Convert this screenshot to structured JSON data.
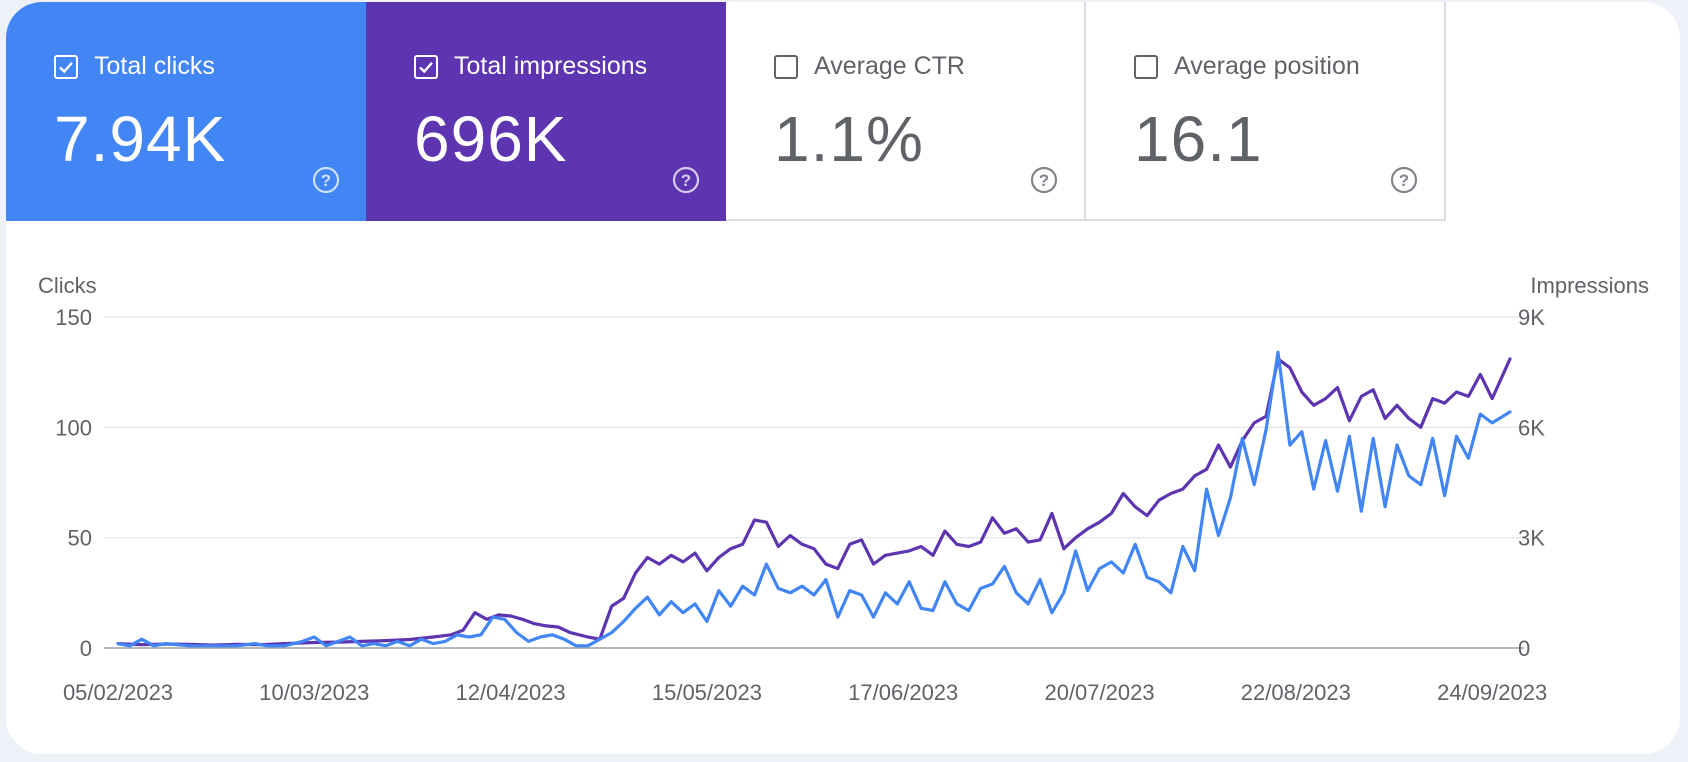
{
  "tiles": [
    {
      "label": "Total clicks",
      "value": "7.94K",
      "checked": true
    },
    {
      "label": "Total impressions",
      "value": "696K",
      "checked": true
    },
    {
      "label": "Average CTR",
      "value": "1.1%",
      "checked": false
    },
    {
      "label": "Average position",
      "value": "16.1",
      "checked": false
    }
  ],
  "colors": {
    "clicks": "#4285f4",
    "impressions": "#5e35b1",
    "grid": "#e6e8eb",
    "baseline": "#9aa0a6"
  },
  "chart_data": {
    "type": "line",
    "ylabel_left": "Clicks",
    "ylabel_right": "Impressions",
    "left_axis": {
      "min": 0,
      "max": 150,
      "ticks": [
        "0",
        "50",
        "100",
        "150"
      ]
    },
    "right_axis": {
      "min": 0,
      "max": 9000,
      "ticks": [
        "0",
        "3K",
        "6K",
        "9K"
      ]
    },
    "x_range": [
      "05/02/2023",
      "27/09/2023"
    ],
    "x_ticks": [
      "05/02/2023",
      "10/03/2023",
      "12/04/2023",
      "15/05/2023",
      "17/06/2023",
      "20/07/2023",
      "22/08/2023",
      "24/09/2023"
    ],
    "grid": true,
    "series": [
      {
        "name": "Clicks",
        "axis": "left",
        "points": [
          [
            "05/02/2023",
            2
          ],
          [
            "07/02/2023",
            1
          ],
          [
            "09/02/2023",
            4
          ],
          [
            "11/02/2023",
            1
          ],
          [
            "13/02/2023",
            2
          ],
          [
            "17/02/2023",
            1
          ],
          [
            "21/02/2023",
            1
          ],
          [
            "25/02/2023",
            1
          ],
          [
            "28/02/2023",
            2
          ],
          [
            "02/03/2023",
            1
          ],
          [
            "05/03/2023",
            1
          ],
          [
            "08/03/2023",
            3
          ],
          [
            "10/03/2023",
            5
          ],
          [
            "12/03/2023",
            1
          ],
          [
            "14/03/2023",
            3
          ],
          [
            "16/03/2023",
            5
          ],
          [
            "18/03/2023",
            1
          ],
          [
            "20/03/2023",
            2
          ],
          [
            "22/03/2023",
            1
          ],
          [
            "24/03/2023",
            3
          ],
          [
            "26/03/2023",
            1
          ],
          [
            "28/03/2023",
            4
          ],
          [
            "30/03/2023",
            2
          ],
          [
            "01/04/2023",
            3
          ],
          [
            "03/04/2023",
            6
          ],
          [
            "05/04/2023",
            5
          ],
          [
            "07/04/2023",
            6
          ],
          [
            "09/04/2023",
            14
          ],
          [
            "11/04/2023",
            13
          ],
          [
            "13/04/2023",
            7
          ],
          [
            "15/04/2023",
            3
          ],
          [
            "17/04/2023",
            5
          ],
          [
            "19/04/2023",
            6
          ],
          [
            "21/04/2023",
            4
          ],
          [
            "23/04/2023",
            1
          ],
          [
            "25/04/2023",
            1
          ],
          [
            "27/04/2023",
            4
          ],
          [
            "29/04/2023",
            7
          ],
          [
            "01/05/2023",
            12
          ],
          [
            "03/05/2023",
            18
          ],
          [
            "05/05/2023",
            23
          ],
          [
            "07/05/2023",
            15
          ],
          [
            "09/05/2023",
            21
          ],
          [
            "11/05/2023",
            16
          ],
          [
            "13/05/2023",
            20
          ],
          [
            "15/05/2023",
            12
          ],
          [
            "17/05/2023",
            26
          ],
          [
            "19/05/2023",
            19
          ],
          [
            "21/05/2023",
            28
          ],
          [
            "23/05/2023",
            24
          ],
          [
            "25/05/2023",
            38
          ],
          [
            "27/05/2023",
            27
          ],
          [
            "29/05/2023",
            25
          ],
          [
            "31/05/2023",
            28
          ],
          [
            "02/06/2023",
            24
          ],
          [
            "04/06/2023",
            31
          ],
          [
            "06/06/2023",
            14
          ],
          [
            "08/06/2023",
            26
          ],
          [
            "10/06/2023",
            24
          ],
          [
            "12/06/2023",
            14
          ],
          [
            "14/06/2023",
            25
          ],
          [
            "16/06/2023",
            20
          ],
          [
            "18/06/2023",
            30
          ],
          [
            "20/06/2023",
            18
          ],
          [
            "22/06/2023",
            17
          ],
          [
            "24/06/2023",
            30
          ],
          [
            "26/06/2023",
            20
          ],
          [
            "28/06/2023",
            17
          ],
          [
            "30/06/2023",
            27
          ],
          [
            "02/07/2023",
            29
          ],
          [
            "04/07/2023",
            37
          ],
          [
            "06/07/2023",
            25
          ],
          [
            "08/07/2023",
            20
          ],
          [
            "10/07/2023",
            31
          ],
          [
            "12/07/2023",
            16
          ],
          [
            "14/07/2023",
            25
          ],
          [
            "16/07/2023",
            44
          ],
          [
            "18/07/2023",
            26
          ],
          [
            "20/07/2023",
            36
          ],
          [
            "22/07/2023",
            39
          ],
          [
            "24/07/2023",
            34
          ],
          [
            "26/07/2023",
            47
          ],
          [
            "28/07/2023",
            32
          ],
          [
            "30/07/2023",
            30
          ],
          [
            "01/08/2023",
            25
          ],
          [
            "03/08/2023",
            46
          ],
          [
            "05/08/2023",
            35
          ],
          [
            "07/08/2023",
            72
          ],
          [
            "09/08/2023",
            51
          ],
          [
            "11/08/2023",
            68
          ],
          [
            "13/08/2023",
            95
          ],
          [
            "15/08/2023",
            74
          ],
          [
            "17/08/2023",
            99
          ],
          [
            "19/08/2023",
            134
          ],
          [
            "21/08/2023",
            92
          ],
          [
            "23/08/2023",
            98
          ],
          [
            "25/08/2023",
            72
          ],
          [
            "27/08/2023",
            94
          ],
          [
            "29/08/2023",
            71
          ],
          [
            "31/08/2023",
            96
          ],
          [
            "02/09/2023",
            62
          ],
          [
            "04/09/2023",
            95
          ],
          [
            "06/09/2023",
            64
          ],
          [
            "08/09/2023",
            92
          ],
          [
            "10/09/2023",
            78
          ],
          [
            "12/09/2023",
            74
          ],
          [
            "14/09/2023",
            95
          ],
          [
            "16/09/2023",
            69
          ],
          [
            "18/09/2023",
            96
          ],
          [
            "20/09/2023",
            86
          ],
          [
            "22/09/2023",
            106
          ],
          [
            "24/09/2023",
            102
          ],
          [
            "27/09/2023",
            107
          ]
        ]
      },
      {
        "name": "Impressions",
        "axis": "right",
        "points": [
          [
            "05/02/2023",
            120
          ],
          [
            "09/02/2023",
            90
          ],
          [
            "13/02/2023",
            110
          ],
          [
            "17/02/2023",
            100
          ],
          [
            "21/02/2023",
            80
          ],
          [
            "25/02/2023",
            100
          ],
          [
            "01/03/2023",
            90
          ],
          [
            "05/03/2023",
            120
          ],
          [
            "10/03/2023",
            150
          ],
          [
            "14/03/2023",
            160
          ],
          [
            "18/03/2023",
            180
          ],
          [
            "22/03/2023",
            200
          ],
          [
            "26/03/2023",
            230
          ],
          [
            "30/03/2023",
            300
          ],
          [
            "02/04/2023",
            360
          ],
          [
            "04/04/2023",
            480
          ],
          [
            "06/04/2023",
            960
          ],
          [
            "08/04/2023",
            780
          ],
          [
            "10/04/2023",
            900
          ],
          [
            "12/04/2023",
            870
          ],
          [
            "14/04/2023",
            780
          ],
          [
            "16/04/2023",
            660
          ],
          [
            "18/04/2023",
            600
          ],
          [
            "20/04/2023",
            570
          ],
          [
            "22/04/2023",
            420
          ],
          [
            "25/04/2023",
            300
          ],
          [
            "27/04/2023",
            240
          ],
          [
            "29/04/2023",
            1140
          ],
          [
            "01/05/2023",
            1350
          ],
          [
            "03/05/2023",
            2040
          ],
          [
            "05/05/2023",
            2460
          ],
          [
            "07/05/2023",
            2280
          ],
          [
            "09/05/2023",
            2520
          ],
          [
            "11/05/2023",
            2340
          ],
          [
            "13/05/2023",
            2580
          ],
          [
            "15/05/2023",
            2100
          ],
          [
            "17/05/2023",
            2460
          ],
          [
            "19/05/2023",
            2700
          ],
          [
            "21/05/2023",
            2820
          ],
          [
            "23/05/2023",
            3480
          ],
          [
            "25/05/2023",
            3420
          ],
          [
            "27/05/2023",
            2760
          ],
          [
            "29/05/2023",
            3060
          ],
          [
            "31/05/2023",
            2820
          ],
          [
            "02/06/2023",
            2700
          ],
          [
            "04/06/2023",
            2280
          ],
          [
            "06/06/2023",
            2160
          ],
          [
            "08/06/2023",
            2820
          ],
          [
            "10/06/2023",
            2940
          ],
          [
            "12/06/2023",
            2280
          ],
          [
            "14/06/2023",
            2520
          ],
          [
            "16/06/2023",
            2580
          ],
          [
            "18/06/2023",
            2640
          ],
          [
            "20/06/2023",
            2760
          ],
          [
            "22/06/2023",
            2520
          ],
          [
            "24/06/2023",
            3180
          ],
          [
            "26/06/2023",
            2820
          ],
          [
            "28/06/2023",
            2760
          ],
          [
            "30/06/2023",
            2880
          ],
          [
            "02/07/2023",
            3540
          ],
          [
            "04/07/2023",
            3120
          ],
          [
            "06/07/2023",
            3240
          ],
          [
            "08/07/2023",
            2880
          ],
          [
            "10/07/2023",
            2940
          ],
          [
            "12/07/2023",
            3660
          ],
          [
            "14/07/2023",
            2700
          ],
          [
            "16/07/2023",
            3000
          ],
          [
            "18/07/2023",
            3240
          ],
          [
            "20/07/2023",
            3420
          ],
          [
            "22/07/2023",
            3660
          ],
          [
            "24/07/2023",
            4200
          ],
          [
            "26/07/2023",
            3840
          ],
          [
            "28/07/2023",
            3600
          ],
          [
            "30/07/2023",
            4020
          ],
          [
            "01/08/2023",
            4200
          ],
          [
            "03/08/2023",
            4320
          ],
          [
            "05/08/2023",
            4680
          ],
          [
            "07/08/2023",
            4860
          ],
          [
            "09/08/2023",
            5520
          ],
          [
            "11/08/2023",
            4920
          ],
          [
            "13/08/2023",
            5640
          ],
          [
            "15/08/2023",
            6120
          ],
          [
            "17/08/2023",
            6300
          ],
          [
            "19/08/2023",
            7860
          ],
          [
            "21/08/2023",
            7620
          ],
          [
            "23/08/2023",
            6960
          ],
          [
            "25/08/2023",
            6600
          ],
          [
            "27/08/2023",
            6780
          ],
          [
            "29/08/2023",
            7080
          ],
          [
            "31/08/2023",
            6180
          ],
          [
            "02/09/2023",
            6840
          ],
          [
            "04/09/2023",
            7020
          ],
          [
            "06/09/2023",
            6240
          ],
          [
            "08/09/2023",
            6600
          ],
          [
            "10/09/2023",
            6240
          ],
          [
            "12/09/2023",
            6000
          ],
          [
            "14/09/2023",
            6780
          ],
          [
            "16/09/2023",
            6660
          ],
          [
            "18/09/2023",
            6960
          ],
          [
            "20/09/2023",
            6840
          ],
          [
            "22/09/2023",
            7440
          ],
          [
            "24/09/2023",
            6780
          ],
          [
            "27/09/2023",
            7860
          ]
        ]
      }
    ]
  }
}
